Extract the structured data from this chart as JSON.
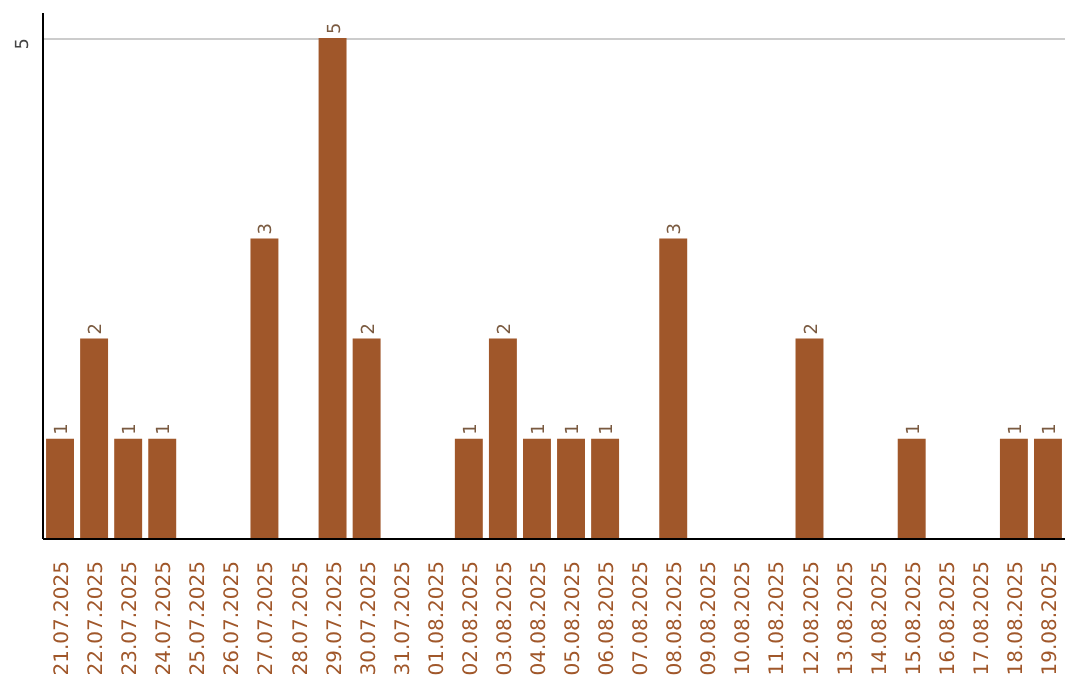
{
  "chart_data": {
    "type": "bar",
    "categories": [
      "21.07.2025",
      "22.07.2025",
      "23.07.2025",
      "24.07.2025",
      "25.07.2025",
      "26.07.2025",
      "27.07.2025",
      "28.07.2025",
      "29.07.2025",
      "30.07.2025",
      "31.07.2025",
      "01.08.2025",
      "02.08.2025",
      "03.08.2025",
      "04.08.2025",
      "05.08.2025",
      "06.08.2025",
      "07.08.2025",
      "08.08.2025",
      "09.08.2025",
      "10.08.2025",
      "11.08.2025",
      "12.08.2025",
      "13.08.2025",
      "14.08.2025",
      "15.08.2025",
      "16.08.2025",
      "17.08.2025",
      "18.08.2025",
      "19.08.2025"
    ],
    "values": [
      1,
      2,
      1,
      1,
      0,
      0,
      3,
      0,
      5,
      2,
      0,
      0,
      1,
      2,
      1,
      1,
      1,
      0,
      3,
      0,
      0,
      0,
      2,
      0,
      0,
      1,
      0,
      0,
      1,
      1
    ],
    "value_labels": [
      "1",
      "2",
      "1",
      "1",
      null,
      null,
      "3",
      null,
      "5",
      "2",
      null,
      null,
      "1",
      "2",
      "1",
      "1",
      "1",
      null,
      "3",
      null,
      null,
      null,
      "2",
      null,
      null,
      "1",
      null,
      null,
      "1",
      "1"
    ],
    "color": "#a0572a",
    "ylim": [
      0,
      5.25
    ],
    "yticks": [
      5
    ],
    "grid": "y"
  }
}
